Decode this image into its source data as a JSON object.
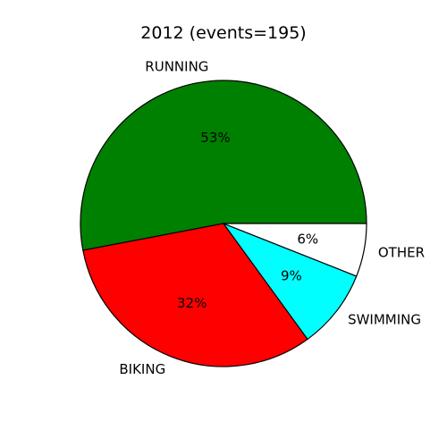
{
  "chart_data": {
    "type": "pie",
    "title": "2012 (events=195)",
    "start_angle_deg": 0,
    "direction": "counterclockwise",
    "slices": [
      {
        "label": "RUNNING",
        "value": 53,
        "pct_label": "53%",
        "color": "#008000"
      },
      {
        "label": "BIKING",
        "value": 32,
        "pct_label": "32%",
        "color": "#ff0000"
      },
      {
        "label": "SWIMMING",
        "value": 9,
        "pct_label": "9%",
        "color": "#00ffff"
      },
      {
        "label": "OTHER",
        "value": 6,
        "pct_label": "6%",
        "color": "#ffffff"
      }
    ]
  }
}
